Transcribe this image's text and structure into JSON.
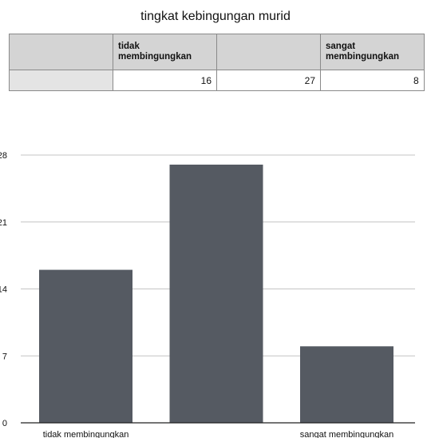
{
  "chart_data": {
    "type": "bar",
    "title": "tingkat kebingungan murid",
    "categories": [
      "tidak membingungkan",
      "",
      "sangat membingungkan"
    ],
    "series": [
      {
        "values": [
          16,
          27,
          8
        ]
      }
    ],
    "table": {
      "headers": [
        "",
        "tidak\nmembingungkan",
        "",
        "sangat\nmembingungkan"
      ],
      "values": [
        "",
        "16",
        "27",
        "8"
      ]
    },
    "yticks": [
      "0",
      "7",
      "14",
      "21",
      "28"
    ],
    "ylim": [
      0,
      28
    ],
    "grid": true,
    "bar_color": "#555a62"
  }
}
